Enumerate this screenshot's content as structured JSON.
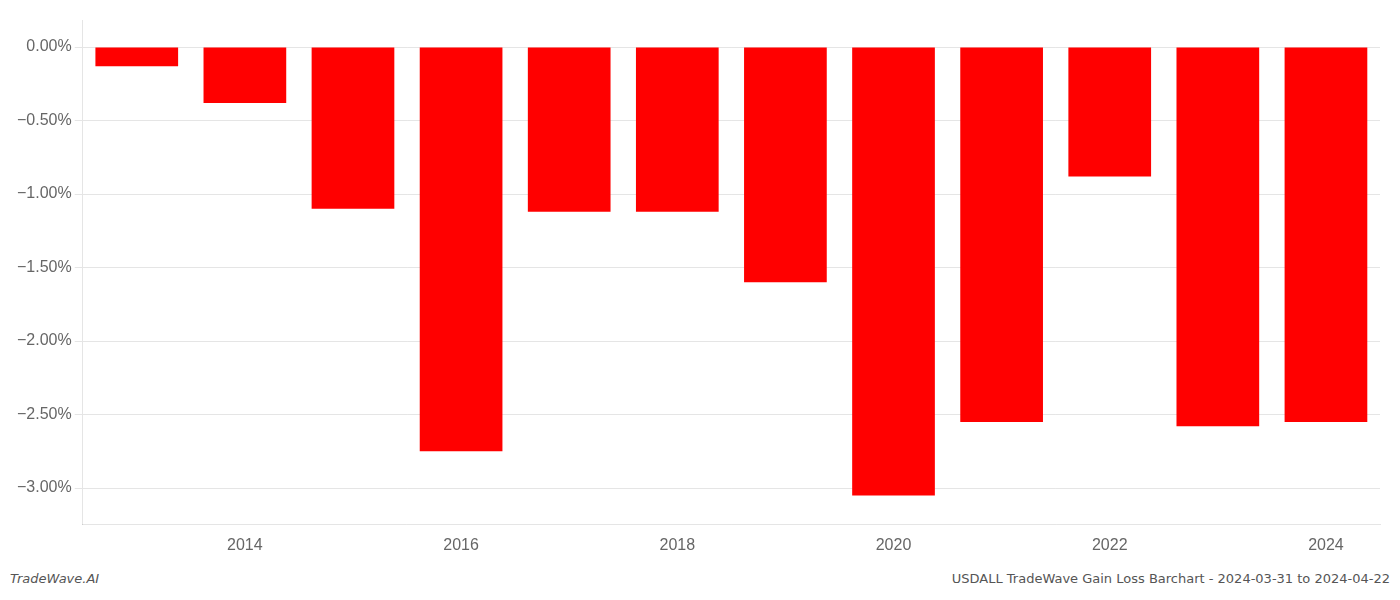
{
  "chart_data": {
    "type": "bar",
    "categories": [
      null,
      "2014",
      null,
      "2016",
      null,
      "2018",
      null,
      "2020",
      null,
      "2022",
      null,
      "2024"
    ],
    "values": [
      -0.13,
      -0.38,
      -1.1,
      -2.75,
      -1.12,
      -1.12,
      -1.6,
      -3.05,
      -2.55,
      -0.88,
      -2.58,
      -2.55
    ],
    "color": "#ff0000",
    "ylim": [
      -3.25,
      0.18
    ],
    "yticks": [
      {
        "value": 0.0,
        "label": "0.00%"
      },
      {
        "value": -0.5,
        "label": "−0.50%"
      },
      {
        "value": -1.0,
        "label": "−1.00%"
      },
      {
        "value": -1.5,
        "label": "−1.50%"
      },
      {
        "value": -2.0,
        "label": "−2.00%"
      },
      {
        "value": -2.5,
        "label": "−2.50%"
      },
      {
        "value": -3.0,
        "label": "−3.00%"
      }
    ],
    "grid": true,
    "annotations": [
      "TradeWave.AI",
      "USDALL TradeWave Gain Loss Barchart - 2024-03-31 to 2024-04-22"
    ]
  }
}
